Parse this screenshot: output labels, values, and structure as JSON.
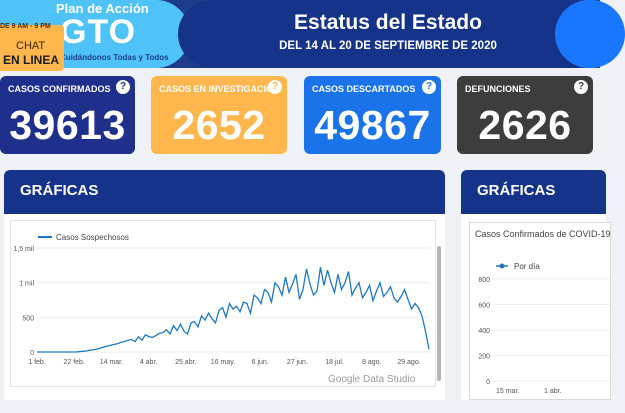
{
  "header": {
    "logo_line1": "Plan de Acción",
    "logo_main": "GTO",
    "logo_line2": "Cuidándonos Todas y Todos",
    "title": "Estatus del Estado",
    "subtitle": "DEL 14 AL 20 DE SEPTIEMBRE DE 2020"
  },
  "chat": {
    "hours": "DE 9 AM - 9 PM",
    "line1": "CHAT",
    "line2": "EN LINEA"
  },
  "cards": [
    {
      "label": "CASOS CONFIRMADOS",
      "value": "39613",
      "color": "#1e2f8c"
    },
    {
      "label": "CASOS EN INVESTIGACIÓN",
      "value": "2652",
      "color": "#ffb74d"
    },
    {
      "label": "CASOS DESCARTADOS",
      "value": "49867",
      "color": "#1a73e8"
    },
    {
      "label": "DEFUNCIONES",
      "value": "2626",
      "color": "#3d3d3d"
    }
  ],
  "card_help_icon": "?",
  "graficas_left": "GRÁFICAS",
  "graficas_right": "GRÁFICAS",
  "watermark": "Google Data Studio",
  "chart_data": [
    {
      "type": "line",
      "legend": "Casos Sospechosos",
      "x_ticks": [
        "1 feb.",
        "22 feb.",
        "14 mar.",
        "4 abr.",
        "25 abr.",
        "16 may.",
        "6 jun.",
        "27 jun.",
        "18 jul.",
        "8 ago.",
        "29 ago."
      ],
      "y_ticks": [
        "0",
        "500",
        "1 mil",
        "1,5 mil"
      ],
      "ylim": [
        0,
        1500
      ],
      "series": [
        {
          "name": "Casos Sospechosos",
          "values": [
            0,
            0,
            0,
            0,
            0,
            0,
            0,
            0,
            0,
            0,
            0,
            0,
            5,
            10,
            15,
            25,
            30,
            40,
            55,
            70,
            85,
            95,
            110,
            120,
            140,
            150,
            170,
            180,
            150,
            220,
            170,
            250,
            220,
            210,
            240,
            270,
            280,
            320,
            260,
            380,
            310,
            400,
            300,
            260,
            420,
            440,
            360,
            520,
            460,
            560,
            480,
            420,
            600,
            640,
            500,
            700,
            620,
            660,
            580,
            720,
            700,
            560,
            820,
            780,
            700,
            900,
            860,
            720,
            1000,
            940,
            820,
            1080,
            860,
            980,
            1120,
            760,
            900,
            1200,
            980,
            820,
            880,
            1220,
            960,
            1180,
            1000,
            860,
            1120,
            900,
            1000,
            1160,
            820,
            920,
            1000,
            780,
            860,
            960,
            740,
            880,
            1000,
            800,
            860,
            940,
            780,
            720,
            800,
            900,
            760,
            620,
            700,
            640,
            520,
            300,
            40
          ]
        }
      ]
    },
    {
      "type": "line",
      "title": "Casos Confirmados de COVID-19",
      "legend": "Por día",
      "x_ticks": [
        "15 mar.",
        "1 abr."
      ],
      "y_ticks": [
        "0",
        "200",
        "400",
        "600",
        "800"
      ],
      "ylim": [
        0,
        800
      ]
    }
  ]
}
